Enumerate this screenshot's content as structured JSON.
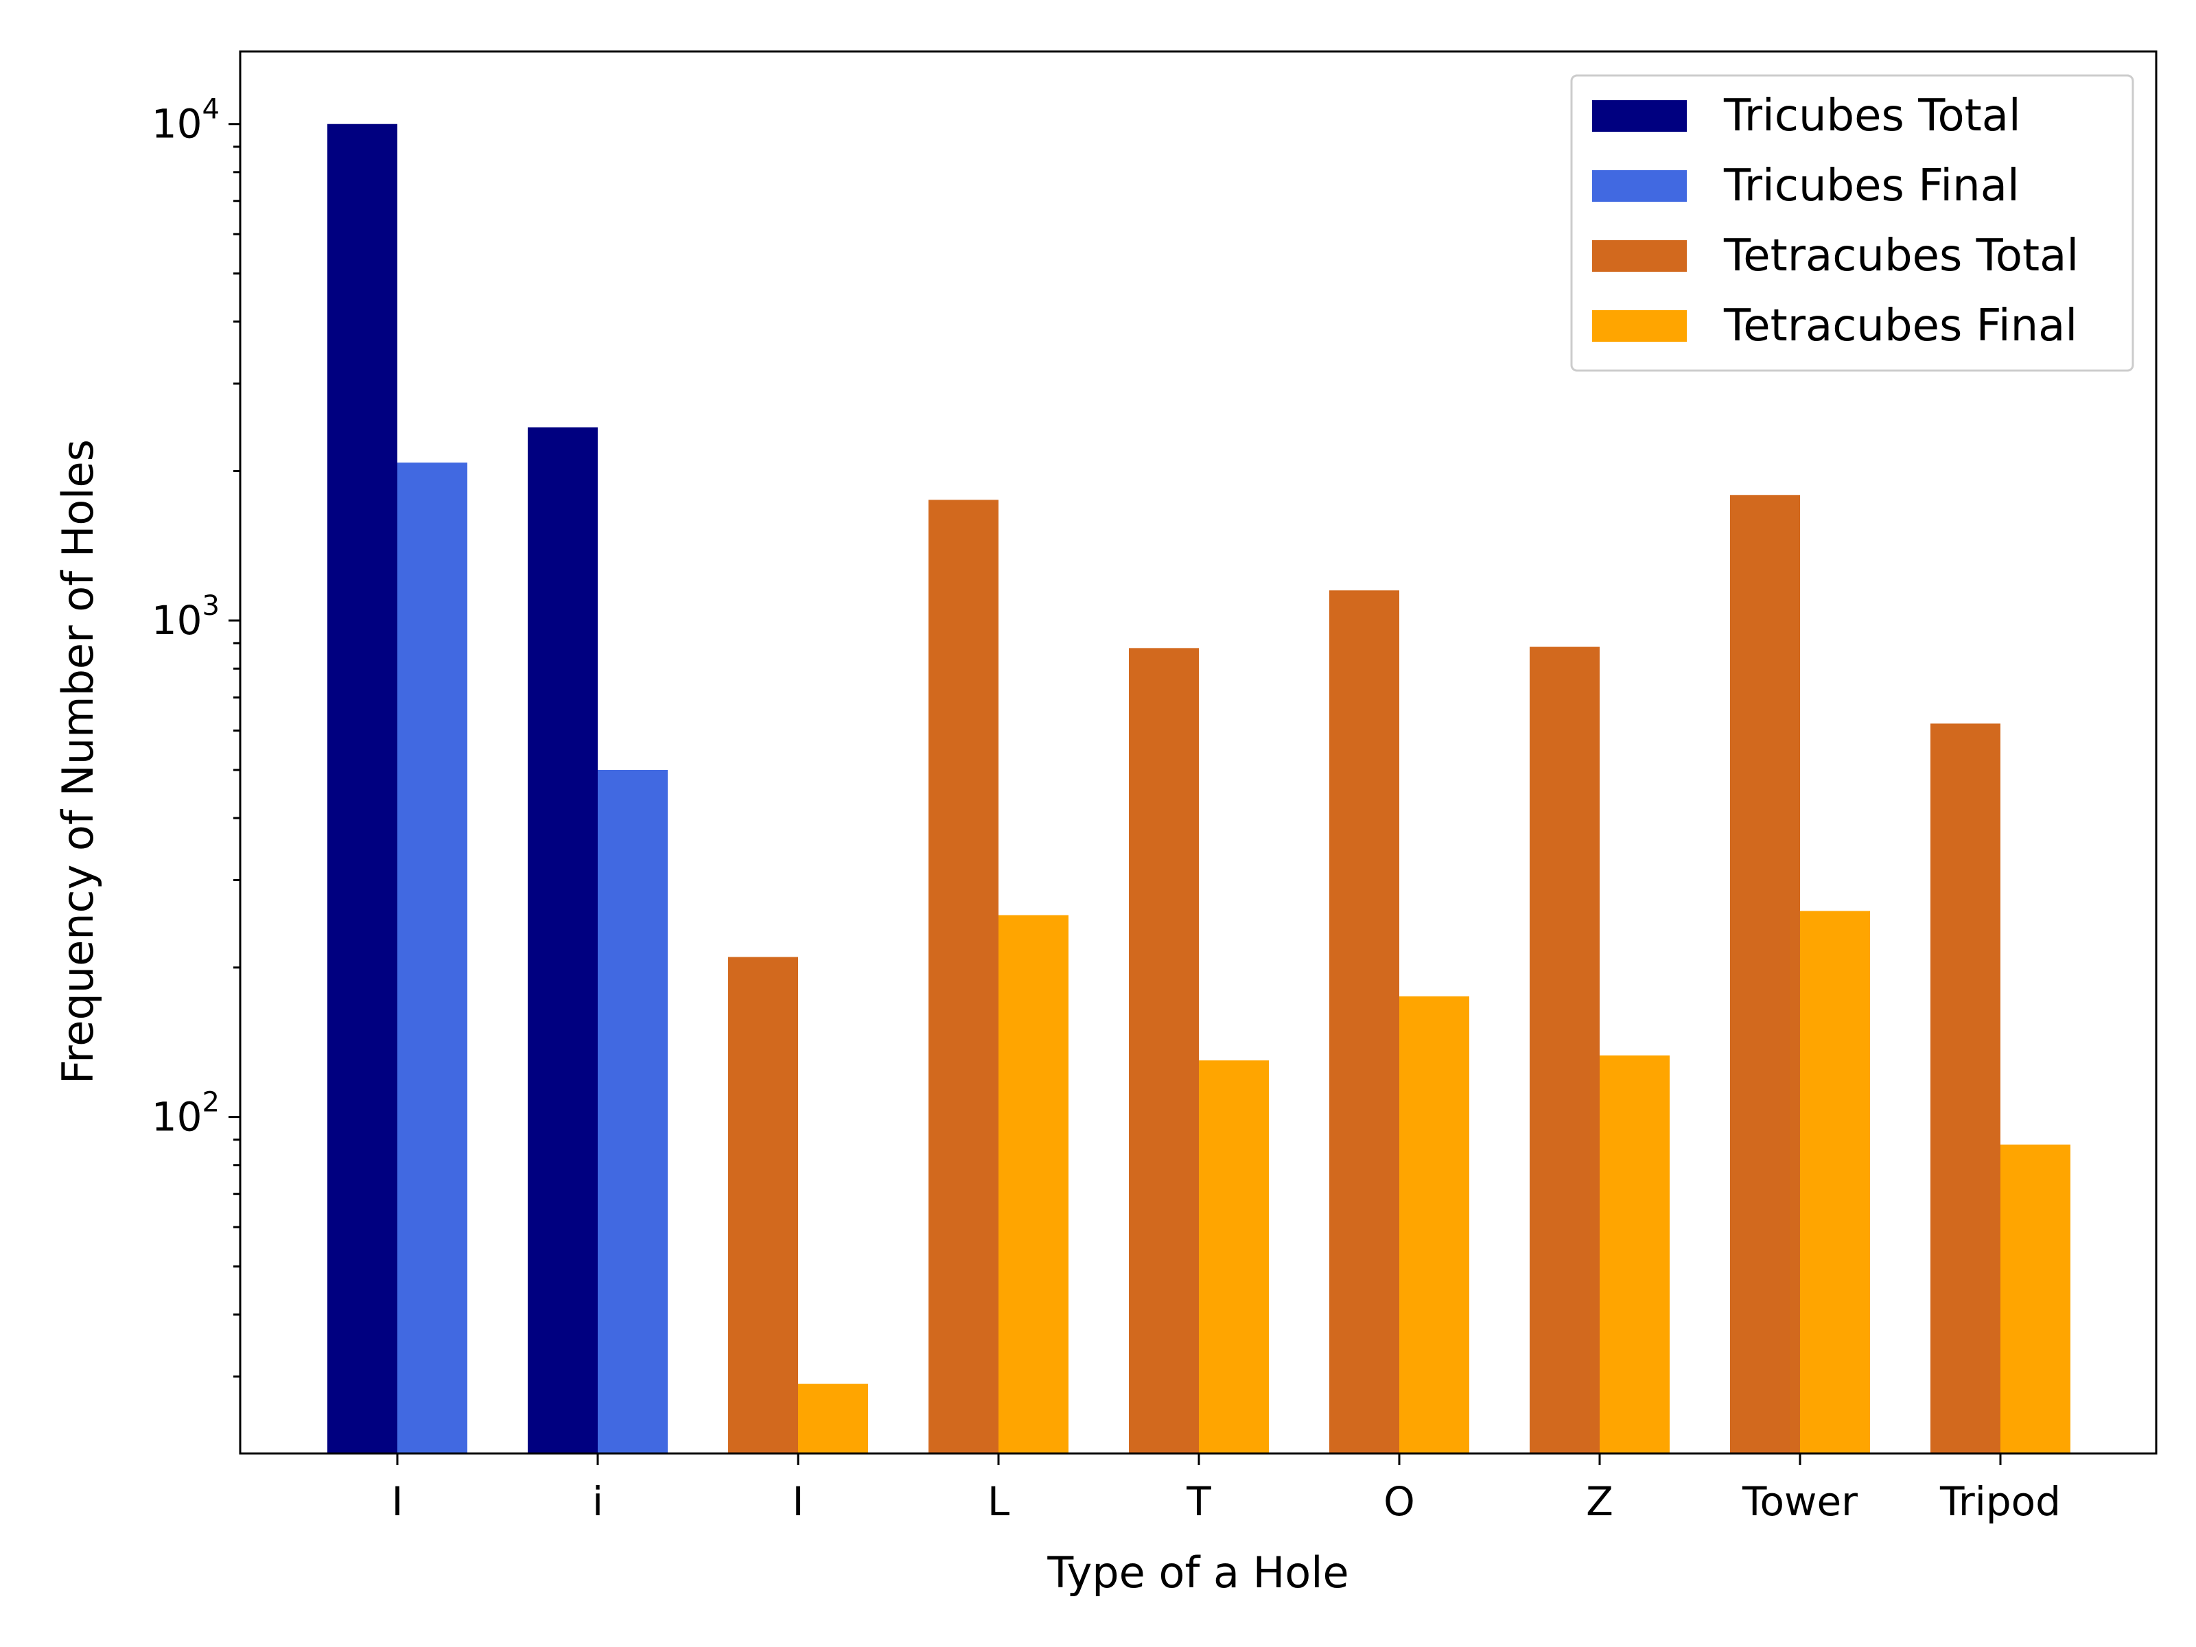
{
  "chart_data": {
    "type": "bar",
    "yscale": "log",
    "categories": [
      "I",
      "i",
      "I",
      "L",
      "T",
      "O",
      "Z",
      "Tower",
      "Tripod"
    ],
    "series": [
      {
        "name": "Tricubes Total",
        "color": "#000080",
        "values": [
          10000,
          2450,
          null,
          null,
          null,
          null,
          null,
          null,
          null
        ]
      },
      {
        "name": "Tricubes Final",
        "color": "#4169E1",
        "values": [
          2080,
          500,
          null,
          null,
          null,
          null,
          null,
          null,
          null
        ]
      },
      {
        "name": "Tetracubes Total",
        "color": "#D2691E",
        "values": [
          null,
          null,
          210,
          1750,
          880,
          1150,
          885,
          1790,
          620
        ]
      },
      {
        "name": "Tetracubes Final",
        "color": "#FFA500",
        "values": [
          null,
          null,
          29,
          255,
          130,
          175,
          133,
          260,
          88
        ]
      }
    ],
    "xlabel": "Type of a Hole",
    "ylabel": "Frequency of Number of Holes",
    "ylim": [
      21,
      14000
    ],
    "yticks": [
      {
        "base": "10",
        "exp": "2",
        "value": 100
      },
      {
        "base": "10",
        "exp": "3",
        "value": 1000
      },
      {
        "base": "10",
        "exp": "4",
        "value": 10000
      }
    ],
    "legend_position": "top-right",
    "grid": false
  }
}
